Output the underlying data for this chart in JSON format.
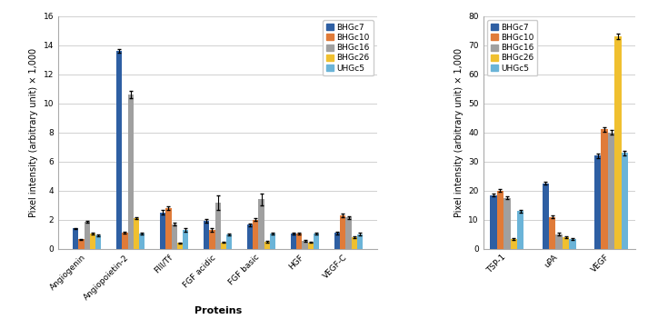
{
  "left_chart": {
    "categories": [
      "Angiogenin",
      "Angiopoietin-2",
      "FIII/Tf",
      "FGF acidic",
      "FGF basic",
      "HGF",
      "VEGF-C"
    ],
    "series": {
      "BHGc7": [
        1.4,
        13.6,
        2.5,
        1.9,
        1.65,
        1.05,
        1.1
      ],
      "BHGc10": [
        0.65,
        1.1,
        2.8,
        1.3,
        2.0,
        1.05,
        2.3
      ],
      "BHGc16": [
        1.85,
        10.6,
        1.7,
        3.2,
        3.4,
        0.55,
        2.15
      ],
      "BHGc26": [
        1.05,
        2.1,
        0.4,
        0.45,
        0.5,
        0.45,
        0.8
      ],
      "UHGc5": [
        0.95,
        1.05,
        1.3,
        1.0,
        1.05,
        1.05,
        1.0
      ]
    },
    "errors": {
      "BHGc7": [
        0.05,
        0.15,
        0.15,
        0.12,
        0.1,
        0.08,
        0.1
      ],
      "BHGc10": [
        0.05,
        0.05,
        0.12,
        0.12,
        0.1,
        0.05,
        0.1
      ],
      "BHGc16": [
        0.08,
        0.25,
        0.1,
        0.5,
        0.4,
        0.08,
        0.1
      ],
      "BHGc26": [
        0.06,
        0.08,
        0.05,
        0.05,
        0.05,
        0.04,
        0.05
      ],
      "UHGc5": [
        0.06,
        0.05,
        0.1,
        0.05,
        0.06,
        0.06,
        0.1
      ]
    },
    "ylabel": "Pixel intensity (arbitrary unit) × 1,000",
    "xlabel": "Proteins",
    "ylim": [
      0,
      16
    ],
    "yticks": [
      0,
      2,
      4,
      6,
      8,
      10,
      12,
      14,
      16
    ],
    "legend_loc": "upper right"
  },
  "right_chart": {
    "categories": [
      "TSP-1",
      "uPA",
      "VEGF"
    ],
    "series": {
      "BHGc7": [
        18.5,
        22.5,
        32.0
      ],
      "BHGc10": [
        20.0,
        11.0,
        41.0
      ],
      "BHGc16": [
        17.5,
        5.0,
        40.0
      ],
      "BHGc26": [
        3.5,
        4.0,
        73.0
      ],
      "UHGc5": [
        13.0,
        3.5,
        33.0
      ]
    },
    "errors": {
      "BHGc7": [
        0.5,
        0.5,
        0.8
      ],
      "BHGc10": [
        0.5,
        0.5,
        0.8
      ],
      "BHGc16": [
        0.5,
        0.5,
        0.8
      ],
      "BHGc26": [
        0.3,
        0.3,
        1.0
      ],
      "UHGc5": [
        0.5,
        0.3,
        0.8
      ]
    },
    "ylabel": "Pixel intensity (arbitrary unit) × 1,000",
    "xlabel": "",
    "ylim": [
      0,
      80
    ],
    "yticks": [
      0,
      10,
      20,
      30,
      40,
      50,
      60,
      70,
      80
    ],
    "legend_loc": "upper left"
  },
  "series_names": [
    "BHGc7",
    "BHGc10",
    "BHGc16",
    "BHGc26",
    "UHGc5"
  ],
  "colors": {
    "BHGc7": "#2e5fa3",
    "BHGc10": "#e07b39",
    "BHGc16": "#a0a0a0",
    "BHGc26": "#f0c030",
    "UHGc5": "#6bb4d8"
  },
  "bar_width": 0.13,
  "figsize": [
    7.13,
    3.51
  ],
  "dpi": 100,
  "background_color": "#ffffff",
  "grid_color": "#d0d0d0",
  "legend_fontsize": 6.5,
  "axis_fontsize": 7,
  "tick_fontsize": 6.5,
  "xlabel_fontsize": 8
}
